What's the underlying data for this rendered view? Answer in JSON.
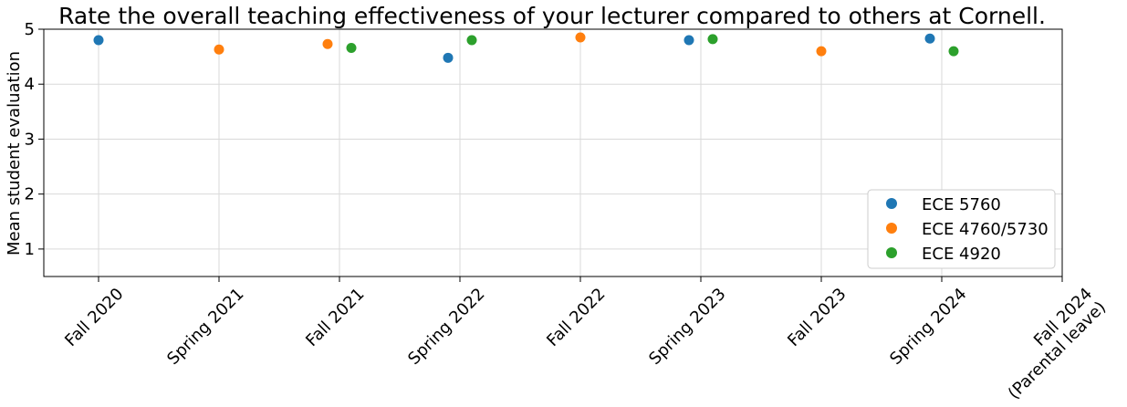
{
  "chart_data": {
    "type": "scatter",
    "title": "Rate the overall teaching effectiveness of your lecturer compared to others at Cornell.",
    "xlabel": "",
    "ylabel": "Mean student evaluation",
    "categories": [
      "Fall 2020",
      "Spring 2021",
      "Fall 2021",
      "Spring 2022",
      "Fall 2022",
      "Spring 2023",
      "Fall 2023",
      "Spring 2024",
      "Fall 2024\n(Parental leave)"
    ],
    "ylim": [
      0.5,
      5
    ],
    "yticks": [
      1,
      2,
      3,
      4,
      5
    ],
    "grid": true,
    "legend_position": "lower-right",
    "series": [
      {
        "name": "ECE 5760",
        "color": "#1f77b4",
        "points": [
          {
            "x": "Fall 2020",
            "y": 4.8
          },
          {
            "x": "Spring 2022",
            "y": 4.48
          },
          {
            "x": "Spring 2023",
            "y": 4.8
          },
          {
            "x": "Spring 2024",
            "y": 4.83
          }
        ]
      },
      {
        "name": "ECE 4760/5730",
        "color": "#ff7f0e",
        "points": [
          {
            "x": "Spring 2021",
            "y": 4.63
          },
          {
            "x": "Fall 2021",
            "y": 4.73
          },
          {
            "x": "Fall 2022",
            "y": 4.85
          },
          {
            "x": "Fall 2023",
            "y": 4.6
          }
        ]
      },
      {
        "name": "ECE 4920",
        "color": "#2ca02c",
        "points": [
          {
            "x": "Fall 2021",
            "y": 4.66
          },
          {
            "x": "Spring 2022",
            "y": 4.8
          },
          {
            "x": "Spring 2023",
            "y": 4.82
          },
          {
            "x": "Spring 2024",
            "y": 4.6
          }
        ]
      }
    ]
  }
}
